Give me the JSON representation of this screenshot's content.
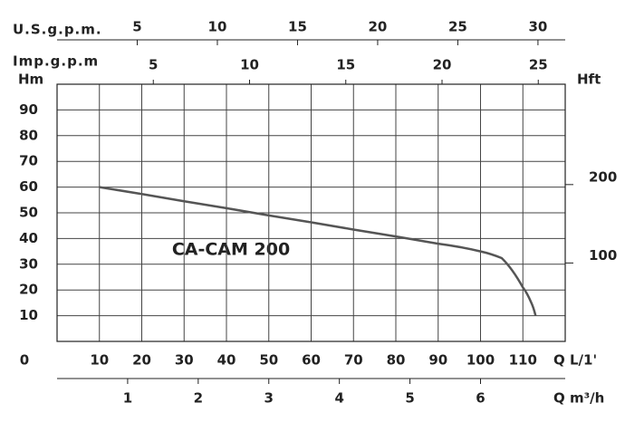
{
  "chart_data": {
    "type": "line",
    "annotation": "CA-CAM 200",
    "x_label": "Q L/1'",
    "y_label": "Hm",
    "y2_label": "Hft",
    "x": [
      10,
      20,
      30,
      40,
      50,
      60,
      70,
      80,
      90,
      100,
      105,
      110,
      112,
      113
    ],
    "values": [
      60,
      57.3,
      54.5,
      51.8,
      49,
      46.3,
      43.5,
      40.8,
      38,
      35,
      32.4,
      21,
      15,
      10
    ],
    "color": "#555555",
    "xlim": [
      0,
      120
    ],
    "xticks": [
      0,
      10,
      20,
      30,
      40,
      50,
      60,
      70,
      80,
      90,
      100,
      110
    ],
    "ylim": [
      0,
      100
    ],
    "yticks": [
      10,
      20,
      30,
      40,
      50,
      60,
      70,
      80,
      90
    ],
    "y2lim": [
      0,
      328
    ],
    "y2ticks": [
      100,
      200
    ],
    "grid": true,
    "top_axes": [
      {
        "label": "U.S.g.p.m.",
        "lim": [
          0,
          31.7
        ],
        "ticks": [
          5,
          10,
          15,
          20,
          25,
          30
        ]
      },
      {
        "label": "Imp.g.p.m",
        "lim": [
          0,
          26.4
        ],
        "ticks": [
          5,
          10,
          15,
          20,
          25
        ]
      }
    ],
    "bottom_axis2": {
      "label": "Q m³/h",
      "lim": [
        0,
        7.2
      ],
      "ticks": [
        1,
        2,
        3,
        4,
        5,
        6
      ]
    }
  }
}
